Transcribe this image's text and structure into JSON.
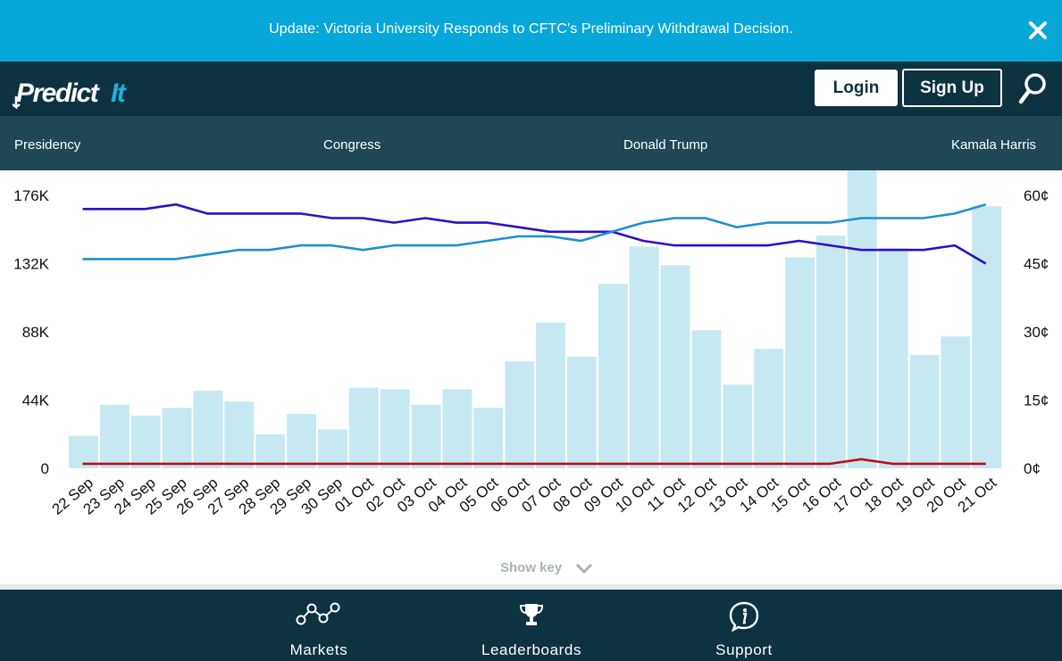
{
  "banner": {
    "text": "Update: Victoria University Responds to CFTC's Preliminary Withdrawal Decision.",
    "close_icon": "close-icon"
  },
  "header": {
    "logo_text": "PredictIt",
    "login_label": "Login",
    "signup_label": "Sign Up",
    "search_icon": "search-icon"
  },
  "nav": {
    "items": [
      {
        "label": "Presidency"
      },
      {
        "label": "Congress"
      },
      {
        "label": "Donald Trump"
      },
      {
        "label": "Kamala Harris"
      }
    ]
  },
  "colors": {
    "banner": "#08a7d9",
    "header": "#0d3240",
    "nav": "#1e4854",
    "bars": "#c6e9f1",
    "series_dark_blue": "#2d0fc7",
    "series_light_blue": "#1e90cf",
    "series_red": "#c00a14"
  },
  "chart_data": {
    "type": "bar",
    "categories": [
      "22 Sep",
      "23 Sep",
      "24 Sep",
      "25 Sep",
      "26 Sep",
      "27 Sep",
      "28 Sep",
      "29 Sep",
      "30 Sep",
      "01 Oct",
      "02 Oct",
      "03 Oct",
      "04 Oct",
      "05 Oct",
      "06 Oct",
      "07 Oct",
      "08 Oct",
      "09 Oct",
      "10 Oct",
      "11 Oct",
      "12 Oct",
      "13 Oct",
      "14 Oct",
      "15 Oct",
      "16 Oct",
      "17 Oct",
      "18 Oct",
      "19 Oct",
      "20 Oct",
      "21 Oct"
    ],
    "bar_values": [
      21000,
      41000,
      34000,
      39000,
      50000,
      43000,
      22000,
      35000,
      25000,
      52000,
      51000,
      41000,
      51000,
      39000,
      69000,
      94000,
      72000,
      119000,
      143000,
      131000,
      89000,
      54000,
      77000,
      136000,
      150000,
      195000,
      142000,
      73000,
      85000,
      169000
    ],
    "left_axis": {
      "ticks": [
        "0",
        "44K",
        "88K",
        "132K",
        "176K"
      ],
      "tick_values": [
        0,
        44000,
        88000,
        132000,
        176000
      ]
    },
    "right_axis": {
      "ticks": [
        "0¢",
        "15¢",
        "30¢",
        "45¢",
        "60¢"
      ],
      "tick_values": [
        0,
        15,
        30,
        45,
        60
      ]
    },
    "ylim": [
      0,
      176000
    ],
    "y2lim": [
      0,
      60
    ],
    "series": [
      {
        "color": "#2d0fc7",
        "values": [
          57,
          57,
          57,
          58,
          56,
          56,
          56,
          56,
          55,
          55,
          54,
          55,
          54,
          54,
          53,
          52,
          52,
          52,
          50,
          49,
          49,
          49,
          49,
          50,
          49,
          48,
          48,
          48,
          49,
          45
        ]
      },
      {
        "color": "#1e90cf",
        "values": [
          46,
          46,
          46,
          46,
          47,
          48,
          48,
          49,
          49,
          48,
          49,
          49,
          49,
          50,
          51,
          51,
          50,
          52,
          54,
          55,
          55,
          53,
          54,
          54,
          54,
          55,
          55,
          55,
          56,
          58
        ]
      },
      {
        "color": "#c00a14",
        "values": [
          1,
          1,
          1,
          1,
          1,
          1,
          1,
          1,
          1,
          1,
          1,
          1,
          1,
          1,
          1,
          1,
          1,
          1,
          1,
          1,
          1,
          1,
          1,
          1,
          1,
          2,
          1,
          1,
          1,
          1
        ]
      }
    ]
  },
  "chart_footer": {
    "show_key_label": "Show key",
    "chevron_icon": "chevron-down-icon"
  },
  "footer": {
    "items": [
      {
        "label": "Markets",
        "icon": "markets-icon"
      },
      {
        "label": "Leaderboards",
        "icon": "trophy-icon"
      },
      {
        "label": "Support",
        "icon": "info-icon"
      }
    ]
  }
}
